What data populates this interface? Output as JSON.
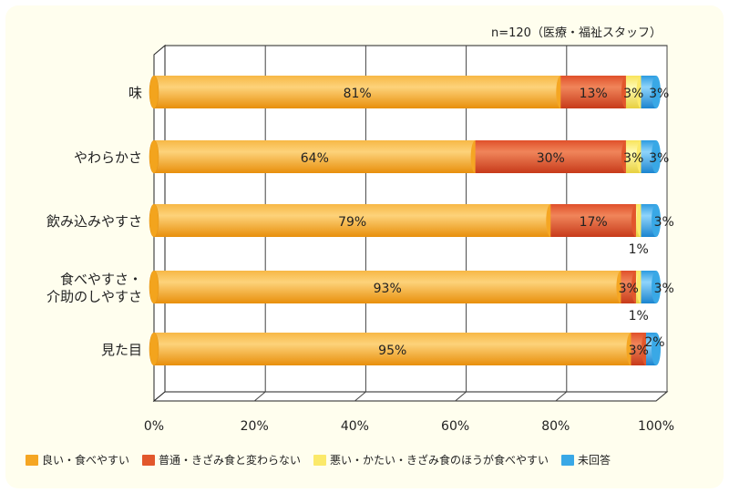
{
  "note": "n=120（医療・福祉スタッフ）",
  "chart_data": {
    "type": "bar",
    "orientation": "horizontal",
    "stacked": true,
    "categories": [
      "味",
      "やわらかさ",
      "飲み込みやすさ",
      "食べやすさ・\n介助のしやすさ",
      "見た目"
    ],
    "series": [
      {
        "name": "良い・食べやすい",
        "color": "#f5a623",
        "values": [
          81,
          64,
          79,
          93,
          95
        ],
        "labels": [
          "81%",
          "64%",
          "79%",
          "93%",
          "95%"
        ]
      },
      {
        "name": "普通・きざみ食と変わらない",
        "color": "#e2572c",
        "values": [
          13,
          30,
          17,
          3,
          3
        ],
        "labels": [
          "13%",
          "30%",
          "17%",
          "3%",
          "3%"
        ]
      },
      {
        "name": "悪い・かたい・きざみ食のほうが食べやすい",
        "color": "#fbe96a",
        "values": [
          3,
          3,
          1,
          1,
          0
        ],
        "labels": [
          "3%",
          "3%",
          "1%",
          "1%",
          ""
        ]
      },
      {
        "name": "未回答",
        "color": "#39a8e6",
        "values": [
          3,
          3,
          3,
          3,
          2
        ],
        "labels": [
          "3%",
          "3%",
          "3%",
          "3%",
          "2%"
        ]
      }
    ],
    "xlim": [
      0,
      100
    ],
    "x_ticks": [
      "0%",
      "20%",
      "40%",
      "60%",
      "80%",
      "100%"
    ],
    "grid": true,
    "legend_position": "bottom"
  }
}
